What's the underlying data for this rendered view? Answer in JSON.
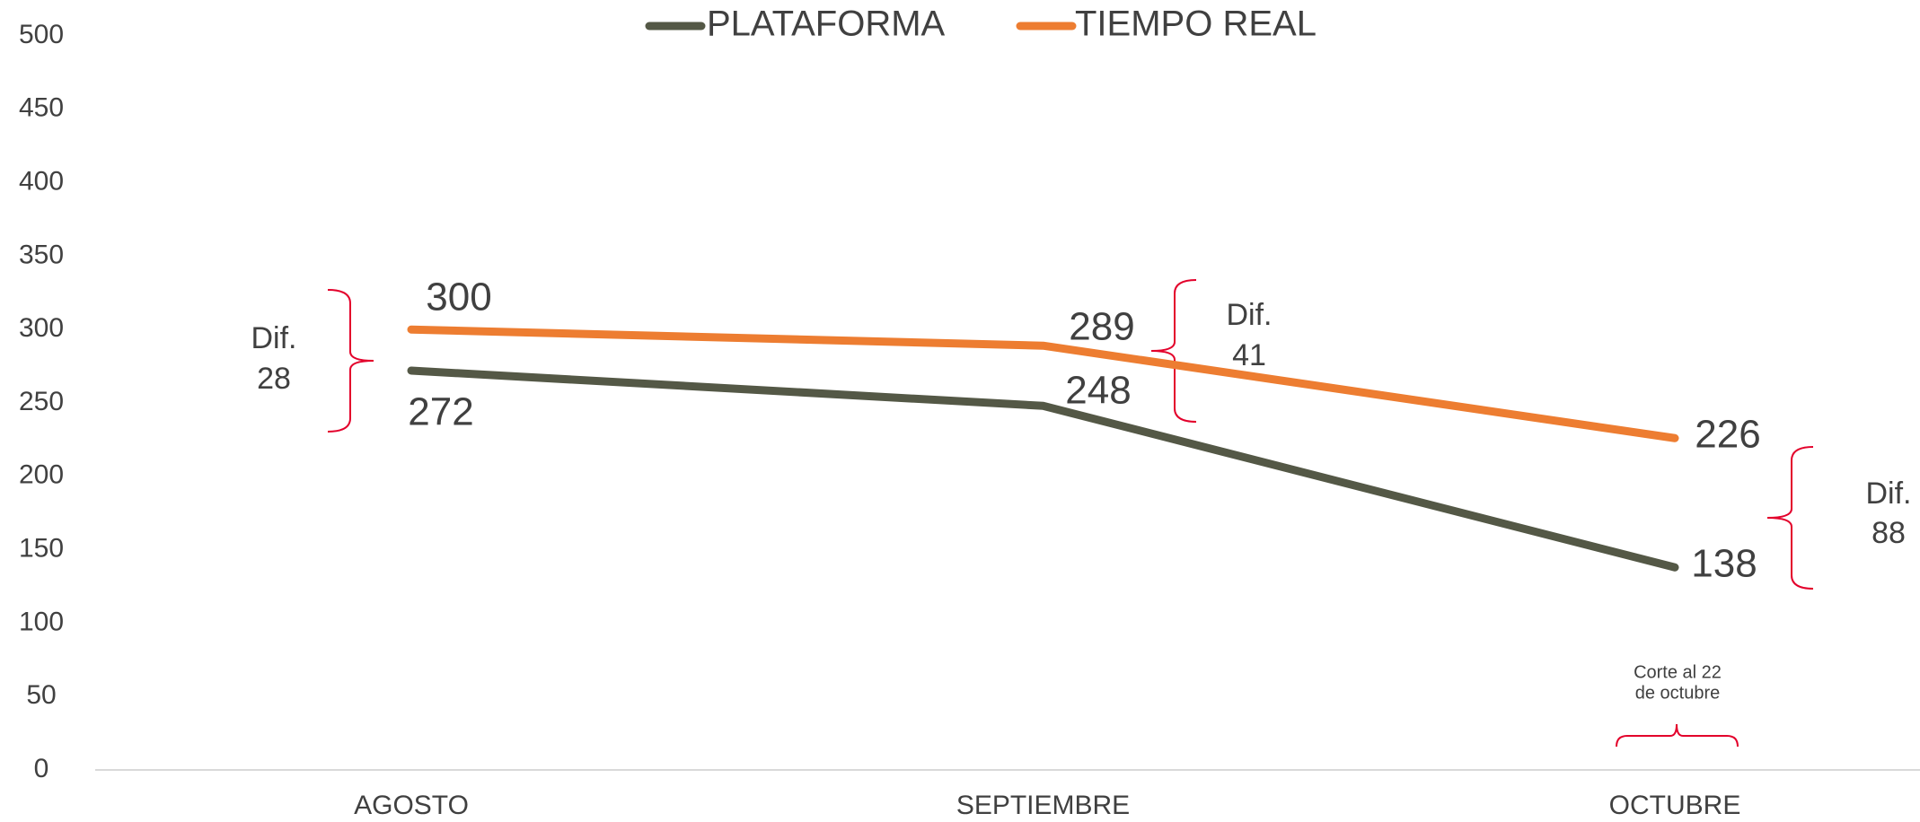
{
  "chart_data": {
    "type": "line",
    "categories": [
      "AGOSTO",
      "SEPTIEMBRE",
      "OCTUBRE"
    ],
    "series": [
      {
        "name": "PLATAFORMA",
        "color": "#545846",
        "values": [
          272,
          248,
          138
        ]
      },
      {
        "name": "TIEMPO REAL",
        "color": "#ed7d31",
        "values": [
          300,
          289,
          226
        ]
      }
    ],
    "ylim": [
      0,
      500
    ],
    "yticks": [
      0,
      50,
      100,
      150,
      200,
      250,
      300,
      350,
      400,
      450,
      500
    ],
    "grid": false,
    "legend": "top",
    "annotations": [
      {
        "lines": [
          "Dif.",
          "28"
        ]
      },
      {
        "lines": [
          "Dif.",
          "41"
        ]
      },
      {
        "lines": [
          "Dif.",
          "88"
        ]
      },
      {
        "lines": [
          "Corte al 22",
          "de octubre"
        ]
      }
    ]
  }
}
